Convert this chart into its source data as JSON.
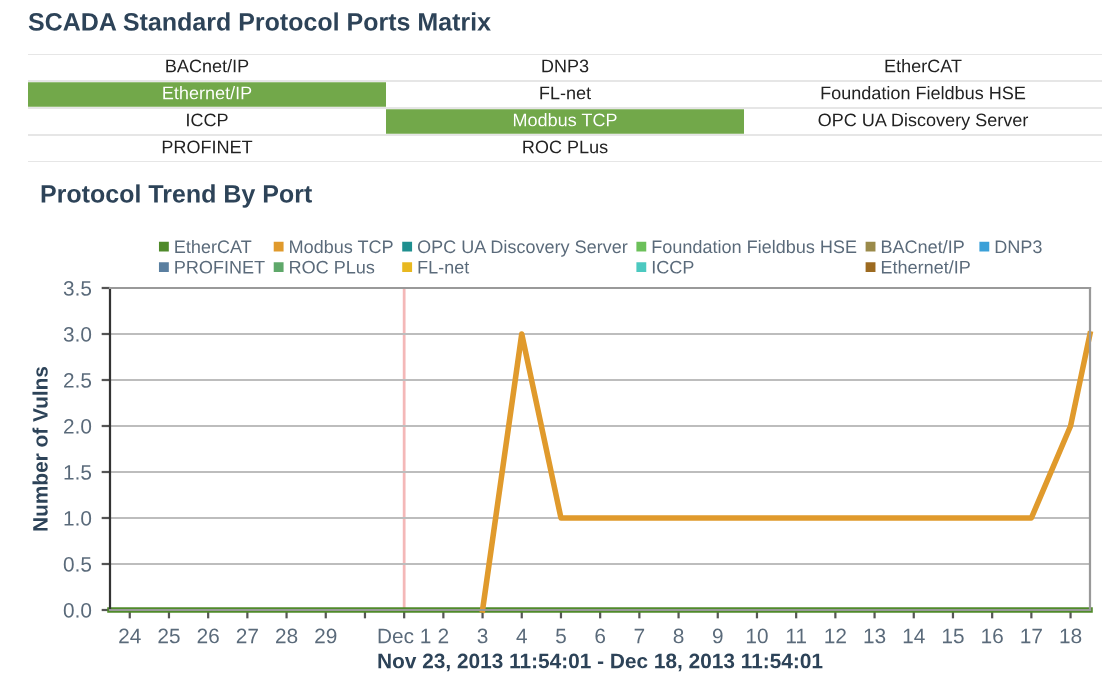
{
  "chart_data": [
    {
      "type": "other",
      "title": "SCADA Standard Protocol Ports Matrix",
      "annotations": [
        "BACnet/IP",
        "DNP3",
        "EtherCAT",
        "Ethernet/IP",
        "FL-net",
        "Foundation Fieldbus HSE",
        "ICCP",
        "Modbus TCP",
        "OPC UA Discovery Server",
        "PROFINET",
        "ROC PLus"
      ],
      "colors": [
        "#ffffff",
        "#ffffff",
        "#ffffff",
        "#72a84a",
        "#ffffff",
        "#ffffff",
        "#ffffff",
        "#72a84a",
        "#ffffff",
        "#ffffff",
        "#ffffff"
      ]
    },
    {
      "type": "line",
      "title": "Protocol Trend By Port",
      "ylabel": "Number of Vulns",
      "xlabel": "Nov 23, 2013 11:54:01 - Dec 18, 2013 11:54:01",
      "x": [
        "2013-11-23T11:54",
        "2013-11-24",
        "2013-11-25",
        "2013-11-26",
        "2013-11-27",
        "2013-11-28",
        "2013-11-29",
        "2013-11-30",
        "2013-12-01",
        "2013-12-02",
        "2013-12-03",
        "2013-12-04",
        "2013-12-05",
        "2013-12-06",
        "2013-12-07",
        "2013-12-08",
        "2013-12-09",
        "2013-12-10",
        "2013-12-11",
        "2013-12-12",
        "2013-12-13",
        "2013-12-14",
        "2013-12-15",
        "2013-12-16",
        "2013-12-17",
        "2013-12-18",
        "2013-12-18T11:54"
      ],
      "series": [
        {
          "name": "EtherCAT",
          "color": "#4f8a2a",
          "values": [
            0,
            0,
            0,
            0,
            0,
            0,
            0,
            0,
            0,
            0,
            0,
            0,
            0,
            0,
            0,
            0,
            0,
            0,
            0,
            0,
            0,
            0,
            0,
            0,
            0,
            0,
            0
          ]
        },
        {
          "name": "PROFINET",
          "color": "#5a7fa0",
          "values": [
            null,
            null,
            null,
            null,
            null,
            null,
            null,
            null,
            null,
            null,
            null,
            null,
            null,
            null,
            null,
            null,
            null,
            null,
            null,
            null,
            null,
            null,
            null,
            null,
            null,
            null,
            null
          ]
        },
        {
          "name": "Modbus TCP",
          "color": "#e09a2c",
          "values": [
            null,
            null,
            null,
            null,
            null,
            null,
            null,
            null,
            null,
            null,
            0,
            3,
            1,
            1,
            1,
            1,
            1,
            1,
            1,
            1,
            1,
            1,
            1,
            1,
            1,
            2,
            3
          ]
        },
        {
          "name": "ROC PLus",
          "color": "#5fa86a",
          "values": [
            null,
            null,
            null,
            null,
            null,
            null,
            null,
            null,
            null,
            null,
            null,
            null,
            null,
            null,
            null,
            null,
            null,
            null,
            null,
            null,
            null,
            null,
            null,
            null,
            null,
            null,
            null
          ]
        },
        {
          "name": "OPC UA Discovery Server",
          "color": "#1f8f8f",
          "values": [
            null,
            null,
            null,
            null,
            null,
            null,
            null,
            null,
            null,
            null,
            null,
            null,
            null,
            null,
            null,
            null,
            null,
            null,
            null,
            null,
            null,
            null,
            null,
            null,
            null,
            null,
            null
          ]
        },
        {
          "name": "FL-net",
          "color": "#e8b820",
          "values": [
            null,
            null,
            null,
            null,
            null,
            null,
            null,
            null,
            null,
            null,
            null,
            null,
            null,
            null,
            null,
            null,
            null,
            null,
            null,
            null,
            null,
            null,
            null,
            null,
            null,
            null,
            null
          ]
        },
        {
          "name": "Foundation Fieldbus HSE",
          "color": "#6cc05a",
          "values": [
            null,
            null,
            null,
            null,
            null,
            null,
            null,
            null,
            null,
            null,
            null,
            null,
            null,
            null,
            null,
            null,
            null,
            null,
            null,
            null,
            null,
            null,
            null,
            null,
            null,
            null,
            null
          ]
        },
        {
          "name": "ICCP",
          "color": "#4cc9c0",
          "values": [
            null,
            null,
            null,
            null,
            null,
            null,
            null,
            null,
            null,
            null,
            null,
            null,
            null,
            null,
            null,
            null,
            null,
            null,
            null,
            null,
            null,
            null,
            null,
            null,
            null,
            null,
            null
          ]
        },
        {
          "name": "BACnet/IP",
          "color": "#9a8a4a",
          "values": [
            null,
            null,
            null,
            null,
            null,
            null,
            null,
            null,
            null,
            null,
            null,
            null,
            null,
            null,
            null,
            null,
            null,
            null,
            null,
            null,
            null,
            null,
            null,
            null,
            null,
            null,
            null
          ]
        },
        {
          "name": "Ethernet/IP",
          "color": "#9c6a20",
          "values": [
            null,
            null,
            null,
            null,
            null,
            null,
            null,
            null,
            null,
            null,
            null,
            null,
            null,
            null,
            null,
            null,
            null,
            null,
            null,
            null,
            null,
            null,
            null,
            null,
            null,
            null,
            null
          ]
        },
        {
          "name": "DNP3",
          "color": "#3aa0d8",
          "values": [
            null,
            null,
            null,
            null,
            null,
            null,
            null,
            null,
            null,
            null,
            null,
            null,
            null,
            null,
            null,
            null,
            null,
            null,
            null,
            null,
            null,
            null,
            null,
            null,
            null,
            null,
            null
          ]
        }
      ],
      "xlim": [
        "2013-11-23T11:54",
        "2013-12-18T11:54"
      ],
      "xticks": [
        {
          "value": "2013-11-24",
          "label": "24"
        },
        {
          "value": "2013-11-25",
          "label": "25"
        },
        {
          "value": "2013-11-26",
          "label": "26"
        },
        {
          "value": "2013-11-27",
          "label": "27"
        },
        {
          "value": "2013-11-28",
          "label": "28"
        },
        {
          "value": "2013-11-29",
          "label": "29"
        },
        {
          "value": "2013-11-30",
          "label": null
        },
        {
          "value": "2013-12-01",
          "label": "Dec 1"
        },
        {
          "value": "2013-12-02",
          "label": "2"
        },
        {
          "value": "2013-12-03",
          "label": "3"
        },
        {
          "value": "2013-12-04",
          "label": "4"
        },
        {
          "value": "2013-12-05",
          "label": "5"
        },
        {
          "value": "2013-12-06",
          "label": "6"
        },
        {
          "value": "2013-12-07",
          "label": "7"
        },
        {
          "value": "2013-12-08",
          "label": "8"
        },
        {
          "value": "2013-12-09",
          "label": "9"
        },
        {
          "value": "2013-12-10",
          "label": "10"
        },
        {
          "value": "2013-12-11",
          "label": "11"
        },
        {
          "value": "2013-12-12",
          "label": "12"
        },
        {
          "value": "2013-12-13",
          "label": "13"
        },
        {
          "value": "2013-12-14",
          "label": "14"
        },
        {
          "value": "2013-12-15",
          "label": "15"
        },
        {
          "value": "2013-12-16",
          "label": "16"
        },
        {
          "value": "2013-12-17",
          "label": "17"
        },
        {
          "value": "2013-12-18",
          "label": "18"
        }
      ],
      "ylim": [
        0,
        3.5
      ],
      "yticks": [
        {
          "value": 0,
          "label": "0.0"
        },
        {
          "value": 0.5,
          "label": "0.5"
        },
        {
          "value": 1,
          "label": "1.0"
        },
        {
          "value": 1.5,
          "label": "1.5"
        },
        {
          "value": 2,
          "label": "2.0"
        },
        {
          "value": 2.5,
          "label": "2.5"
        },
        {
          "value": 3,
          "label": "3.0"
        },
        {
          "value": 3.5,
          "label": "3.5"
        }
      ],
      "ref_lines": [
        {
          "axis": "x",
          "value": "2013-12-01",
          "color": "#f4b8b8"
        }
      ],
      "grid": "y",
      "legend": "top",
      "marker": "none",
      "line_style": "solid"
    }
  ]
}
